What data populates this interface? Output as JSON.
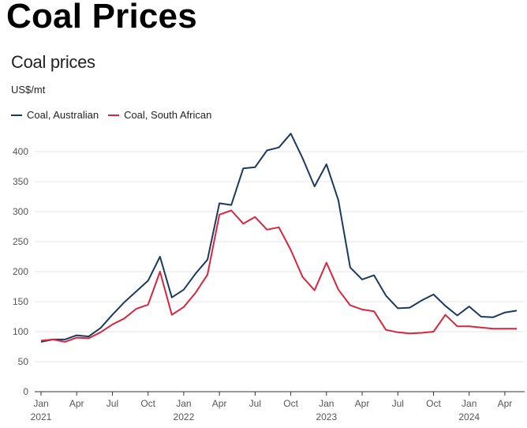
{
  "page": {
    "heading": "Coal Prices"
  },
  "chart_data": {
    "type": "line",
    "title": "Coal prices",
    "ylabel": "US$/mt",
    "ylim": [
      0,
      450
    ],
    "yticks": [
      0,
      50,
      100,
      150,
      200,
      250,
      300,
      350,
      400
    ],
    "grid": true,
    "legend_position": "top-left",
    "x_tick_labels": [
      {
        "index": 0,
        "month": "Jan",
        "year": "2021"
      },
      {
        "index": 3,
        "month": "Apr"
      },
      {
        "index": 6,
        "month": "Jul"
      },
      {
        "index": 9,
        "month": "Oct"
      },
      {
        "index": 12,
        "month": "Jan",
        "year": "2022"
      },
      {
        "index": 15,
        "month": "Apr"
      },
      {
        "index": 18,
        "month": "Jul"
      },
      {
        "index": 21,
        "month": "Oct"
      },
      {
        "index": 24,
        "month": "Jan",
        "year": "2023"
      },
      {
        "index": 27,
        "month": "Apr"
      },
      {
        "index": 30,
        "month": "Jul"
      },
      {
        "index": 33,
        "month": "Oct"
      },
      {
        "index": 36,
        "month": "Jan",
        "year": "2024"
      },
      {
        "index": 39,
        "month": "Apr"
      }
    ],
    "x": [
      "2021-01",
      "2021-02",
      "2021-03",
      "2021-04",
      "2021-05",
      "2021-06",
      "2021-07",
      "2021-08",
      "2021-09",
      "2021-10",
      "2021-11",
      "2021-12",
      "2022-01",
      "2022-02",
      "2022-03",
      "2022-04",
      "2022-05",
      "2022-06",
      "2022-07",
      "2022-08",
      "2022-09",
      "2022-10",
      "2022-11",
      "2022-12",
      "2023-01",
      "2023-02",
      "2023-03",
      "2023-04",
      "2023-05",
      "2023-06",
      "2023-07",
      "2023-08",
      "2023-09",
      "2023-10",
      "2023-11",
      "2023-12",
      "2024-01",
      "2024-02",
      "2024-03",
      "2024-04",
      "2024-05"
    ],
    "series": [
      {
        "name": "Coal, Australian",
        "color": "#1b3a5e",
        "values": [
          83,
          87,
          87,
          94,
          92,
          106,
          128,
          149,
          167,
          185,
          225,
          157,
          170,
          197,
          220,
          314,
          311,
          372,
          374,
          402,
          407,
          430,
          389,
          342,
          379,
          319,
          207,
          187,
          194,
          160,
          139,
          140,
          152,
          162,
          143,
          127,
          142,
          125,
          124,
          132,
          135
        ]
      },
      {
        "name": "Coal, South African",
        "color": "#d7263d",
        "values": [
          85,
          87,
          83,
          90,
          89,
          99,
          112,
          122,
          138,
          145,
          200,
          128,
          141,
          165,
          195,
          295,
          302,
          280,
          291,
          270,
          274,
          236,
          191,
          169,
          215,
          170,
          144,
          137,
          134,
          103,
          99,
          97,
          98,
          100,
          128,
          109,
          109,
          107,
          105,
          105,
          105
        ]
      }
    ]
  }
}
